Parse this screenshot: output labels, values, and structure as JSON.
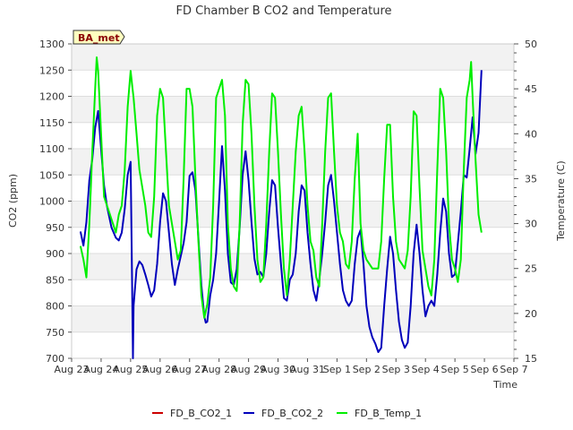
{
  "chart_data": {
    "type": "line",
    "title": "FD Chamber B CO2 and Temperature",
    "xlabel": "Time",
    "ylabel": "CO2 (ppm)",
    "y2label": "Temperature (C)",
    "badge": "BA_met",
    "x_ticks": [
      "Aug 23",
      "Aug 24",
      "Aug 25",
      "Aug 26",
      "Aug 27",
      "Aug 28",
      "Aug 29",
      "Aug 30",
      "Aug 31",
      "Sep 1",
      "Sep 2",
      "Sep 3",
      "Sep 4",
      "Sep 5",
      "Sep 6",
      "Sep 7"
    ],
    "xlim": [
      0,
      15
    ],
    "ylim": [
      700,
      1300
    ],
    "y_ticks": [
      700,
      750,
      800,
      850,
      900,
      950,
      1000,
      1050,
      1100,
      1150,
      1200,
      1250,
      1300
    ],
    "y2lim": [
      15,
      50
    ],
    "y2_ticks": [
      15,
      20,
      25,
      30,
      35,
      40,
      45,
      50
    ],
    "grid": true,
    "legend_position": "bottom",
    "series": [
      {
        "name": "FD_B_CO2_1",
        "axis": "left",
        "color": "#cc0000",
        "points": []
      },
      {
        "name": "FD_B_CO2_2",
        "axis": "left",
        "color": "#0000bb",
        "points": [
          [
            0.3,
            942
          ],
          [
            0.4,
            915
          ],
          [
            0.5,
            960
          ],
          [
            0.6,
            1040
          ],
          [
            0.7,
            1080
          ],
          [
            0.8,
            1140
          ],
          [
            0.9,
            1172
          ],
          [
            1.0,
            1100
          ],
          [
            1.1,
            1030
          ],
          [
            1.2,
            990
          ],
          [
            1.35,
            950
          ],
          [
            1.5,
            930
          ],
          [
            1.6,
            925
          ],
          [
            1.7,
            940
          ],
          [
            1.8,
            985
          ],
          [
            1.9,
            1050
          ],
          [
            2.0,
            1075
          ],
          [
            2.05,
            850
          ],
          [
            2.08,
            700
          ],
          [
            2.1,
            800
          ],
          [
            2.2,
            870
          ],
          [
            2.3,
            885
          ],
          [
            2.4,
            878
          ],
          [
            2.5,
            860
          ],
          [
            2.6,
            840
          ],
          [
            2.7,
            818
          ],
          [
            2.8,
            830
          ],
          [
            2.9,
            880
          ],
          [
            3.0,
            960
          ],
          [
            3.1,
            1015
          ],
          [
            3.2,
            1000
          ],
          [
            3.3,
            940
          ],
          [
            3.4,
            880
          ],
          [
            3.5,
            840
          ],
          [
            3.6,
            870
          ],
          [
            3.7,
            895
          ],
          [
            3.8,
            920
          ],
          [
            3.9,
            960
          ],
          [
            4.0,
            1048
          ],
          [
            4.1,
            1055
          ],
          [
            4.2,
            1020
          ],
          [
            4.3,
            930
          ],
          [
            4.4,
            840
          ],
          [
            4.5,
            780
          ],
          [
            4.55,
            768
          ],
          [
            4.6,
            770
          ],
          [
            4.7,
            820
          ],
          [
            4.8,
            850
          ],
          [
            4.9,
            900
          ],
          [
            5.0,
            1000
          ],
          [
            5.1,
            1105
          ],
          [
            5.2,
            1020
          ],
          [
            5.3,
            900
          ],
          [
            5.4,
            845
          ],
          [
            5.5,
            840
          ],
          [
            5.6,
            870
          ],
          [
            5.7,
            950
          ],
          [
            5.8,
            1050
          ],
          [
            5.9,
            1095
          ],
          [
            6.0,
            1040
          ],
          [
            6.1,
            960
          ],
          [
            6.2,
            890
          ],
          [
            6.3,
            860
          ],
          [
            6.4,
            865
          ],
          [
            6.5,
            855
          ],
          [
            6.6,
            900
          ],
          [
            6.7,
            980
          ],
          [
            6.8,
            1040
          ],
          [
            6.9,
            1030
          ],
          [
            7.0,
            950
          ],
          [
            7.1,
            880
          ],
          [
            7.2,
            815
          ],
          [
            7.3,
            810
          ],
          [
            7.4,
            850
          ],
          [
            7.5,
            860
          ],
          [
            7.6,
            900
          ],
          [
            7.7,
            980
          ],
          [
            7.8,
            1030
          ],
          [
            7.9,
            1020
          ],
          [
            8.0,
            940
          ],
          [
            8.1,
            880
          ],
          [
            8.2,
            830
          ],
          [
            8.3,
            810
          ],
          [
            8.4,
            850
          ],
          [
            8.5,
            900
          ],
          [
            8.6,
            960
          ],
          [
            8.7,
            1030
          ],
          [
            8.8,
            1050
          ],
          [
            8.9,
            1000
          ],
          [
            9.0,
            940
          ],
          [
            9.1,
            880
          ],
          [
            9.2,
            830
          ],
          [
            9.3,
            810
          ],
          [
            9.4,
            800
          ],
          [
            9.5,
            810
          ],
          [
            9.6,
            880
          ],
          [
            9.7,
            930
          ],
          [
            9.8,
            945
          ],
          [
            9.9,
            880
          ],
          [
            10.0,
            800
          ],
          [
            10.1,
            760
          ],
          [
            10.2,
            740
          ],
          [
            10.3,
            728
          ],
          [
            10.4,
            712
          ],
          [
            10.5,
            720
          ],
          [
            10.6,
            800
          ],
          [
            10.7,
            870
          ],
          [
            10.8,
            932
          ],
          [
            10.9,
            900
          ],
          [
            11.0,
            830
          ],
          [
            11.1,
            770
          ],
          [
            11.2,
            735
          ],
          [
            11.3,
            720
          ],
          [
            11.4,
            730
          ],
          [
            11.5,
            800
          ],
          [
            11.6,
            900
          ],
          [
            11.7,
            955
          ],
          [
            11.8,
            900
          ],
          [
            11.9,
            830
          ],
          [
            12.0,
            780
          ],
          [
            12.1,
            800
          ],
          [
            12.2,
            810
          ],
          [
            12.3,
            800
          ],
          [
            12.4,
            860
          ],
          [
            12.5,
            940
          ],
          [
            12.6,
            1005
          ],
          [
            12.7,
            980
          ],
          [
            12.8,
            900
          ],
          [
            12.9,
            855
          ],
          [
            13.0,
            860
          ],
          [
            13.1,
            920
          ],
          [
            13.2,
            980
          ],
          [
            13.3,
            1050
          ],
          [
            13.4,
            1045
          ],
          [
            13.5,
            1100
          ],
          [
            13.6,
            1160
          ],
          [
            13.7,
            1090
          ],
          [
            13.8,
            1130
          ],
          [
            13.9,
            1250
          ]
        ]
      },
      {
        "name": "FD_B_Temp_1",
        "axis": "right",
        "color": "#00ee00",
        "points": [
          [
            0.3,
            27.5
          ],
          [
            0.4,
            26
          ],
          [
            0.5,
            24
          ],
          [
            0.6,
            30
          ],
          [
            0.7,
            38
          ],
          [
            0.8,
            45
          ],
          [
            0.85,
            48.5
          ],
          [
            0.9,
            47
          ],
          [
            1.0,
            40
          ],
          [
            1.1,
            33
          ],
          [
            1.2,
            32
          ],
          [
            1.3,
            31
          ],
          [
            1.4,
            30
          ],
          [
            1.5,
            29
          ],
          [
            1.6,
            31
          ],
          [
            1.7,
            32
          ],
          [
            1.8,
            36
          ],
          [
            1.9,
            43
          ],
          [
            2.0,
            47
          ],
          [
            2.05,
            45.5
          ],
          [
            2.1,
            44
          ],
          [
            2.2,
            40
          ],
          [
            2.3,
            36
          ],
          [
            2.4,
            34
          ],
          [
            2.5,
            32
          ],
          [
            2.6,
            29
          ],
          [
            2.7,
            28.5
          ],
          [
            2.8,
            33
          ],
          [
            2.9,
            42
          ],
          [
            3.0,
            45
          ],
          [
            3.1,
            44
          ],
          [
            3.2,
            38
          ],
          [
            3.3,
            32
          ],
          [
            3.4,
            30
          ],
          [
            3.5,
            28
          ],
          [
            3.6,
            26
          ],
          [
            3.7,
            27
          ],
          [
            3.8,
            35
          ],
          [
            3.9,
            45
          ],
          [
            4.0,
            45
          ],
          [
            4.1,
            43
          ],
          [
            4.2,
            35
          ],
          [
            4.3,
            28
          ],
          [
            4.4,
            22
          ],
          [
            4.5,
            19.5
          ],
          [
            4.6,
            21
          ],
          [
            4.7,
            24
          ],
          [
            4.8,
            32
          ],
          [
            4.9,
            44
          ],
          [
            5.0,
            45
          ],
          [
            5.1,
            46
          ],
          [
            5.2,
            42
          ],
          [
            5.3,
            30
          ],
          [
            5.4,
            25
          ],
          [
            5.5,
            23
          ],
          [
            5.6,
            22.5
          ],
          [
            5.7,
            30
          ],
          [
            5.8,
            41
          ],
          [
            5.9,
            46
          ],
          [
            6.0,
            45.5
          ],
          [
            6.1,
            40
          ],
          [
            6.2,
            32
          ],
          [
            6.3,
            26
          ],
          [
            6.4,
            23.5
          ],
          [
            6.5,
            24
          ],
          [
            6.6,
            30
          ],
          [
            6.7,
            38
          ],
          [
            6.8,
            44.5
          ],
          [
            6.9,
            44
          ],
          [
            7.0,
            38
          ],
          [
            7.1,
            31
          ],
          [
            7.2,
            25
          ],
          [
            7.3,
            22
          ],
          [
            7.4,
            26
          ],
          [
            7.5,
            32
          ],
          [
            7.6,
            38
          ],
          [
            7.7,
            42
          ],
          [
            7.8,
            43
          ],
          [
            7.9,
            38
          ],
          [
            8.0,
            32
          ],
          [
            8.1,
            28
          ],
          [
            8.2,
            27
          ],
          [
            8.3,
            24
          ],
          [
            8.4,
            23
          ],
          [
            8.5,
            30
          ],
          [
            8.6,
            38
          ],
          [
            8.7,
            44
          ],
          [
            8.8,
            44.5
          ],
          [
            8.9,
            38
          ],
          [
            9.0,
            32
          ],
          [
            9.1,
            29
          ],
          [
            9.2,
            28
          ],
          [
            9.3,
            25.5
          ],
          [
            9.4,
            25
          ],
          [
            9.5,
            28
          ],
          [
            9.6,
            35
          ],
          [
            9.7,
            40
          ],
          [
            9.8,
            30
          ],
          [
            9.9,
            27
          ],
          [
            10.0,
            26
          ],
          [
            10.1,
            25.5
          ],
          [
            10.2,
            25
          ],
          [
            10.3,
            25
          ],
          [
            10.4,
            25
          ],
          [
            10.5,
            28
          ],
          [
            10.6,
            35
          ],
          [
            10.7,
            41
          ],
          [
            10.8,
            41
          ],
          [
            10.9,
            33
          ],
          [
            11.0,
            28
          ],
          [
            11.1,
            26
          ],
          [
            11.2,
            25.5
          ],
          [
            11.3,
            25
          ],
          [
            11.4,
            27
          ],
          [
            11.5,
            33
          ],
          [
            11.6,
            42.5
          ],
          [
            11.7,
            42
          ],
          [
            11.8,
            34
          ],
          [
            11.9,
            27
          ],
          [
            12.0,
            25
          ],
          [
            12.1,
            23
          ],
          [
            12.2,
            22
          ],
          [
            12.3,
            26
          ],
          [
            12.4,
            36
          ],
          [
            12.5,
            45
          ],
          [
            12.6,
            44
          ],
          [
            12.7,
            38
          ],
          [
            12.8,
            30
          ],
          [
            12.9,
            26
          ],
          [
            13.0,
            25
          ],
          [
            13.1,
            23.5
          ],
          [
            13.2,
            26
          ],
          [
            13.3,
            36
          ],
          [
            13.4,
            44
          ],
          [
            13.5,
            46
          ],
          [
            13.55,
            48
          ],
          [
            13.6,
            44
          ],
          [
            13.7,
            37
          ],
          [
            13.8,
            31
          ],
          [
            13.9,
            29
          ]
        ]
      }
    ]
  }
}
